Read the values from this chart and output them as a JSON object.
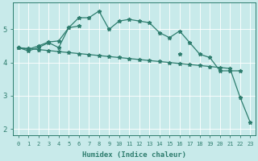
{
  "xlabel": "Humidex (Indice chaleur)",
  "bg_color": "#c8eaea",
  "grid_color": "#ffffff",
  "line_color": "#2e7d6e",
  "x_values": [
    0,
    1,
    2,
    3,
    4,
    5,
    6,
    7,
    8,
    9,
    10,
    11,
    12,
    13,
    14,
    15,
    16,
    17,
    18,
    19,
    20,
    21,
    22,
    23
  ],
  "series_wavy": [
    4.45,
    4.35,
    4.45,
    4.6,
    4.45,
    5.05,
    5.35,
    5.35,
    5.55,
    5.0,
    5.25,
    5.3,
    5.25,
    5.2,
    4.9,
    4.75,
    4.95,
    4.6,
    4.25,
    4.15,
    3.75,
    3.75,
    3.75,
    null
  ],
  "series_straight": [
    4.45,
    4.42,
    4.39,
    4.36,
    4.33,
    4.3,
    4.27,
    4.24,
    4.21,
    4.18,
    4.15,
    4.12,
    4.09,
    4.06,
    4.03,
    4.0,
    3.97,
    3.94,
    3.91,
    3.88,
    3.85,
    3.82,
    2.95,
    2.2
  ],
  "series_short": [
    4.45,
    4.4,
    4.5,
    4.62,
    4.65,
    5.05,
    5.1,
    null,
    null,
    null,
    null,
    null,
    null,
    null,
    null,
    null,
    4.25,
    null,
    null,
    null,
    null,
    null,
    null,
    null
  ],
  "ylim": [
    1.8,
    5.8
  ],
  "yticks": [
    2,
    3,
    4,
    5
  ],
  "xticks": [
    0,
    1,
    2,
    3,
    4,
    5,
    6,
    7,
    8,
    9,
    10,
    11,
    12,
    13,
    14,
    15,
    16,
    17,
    18,
    19,
    20,
    21,
    22,
    23
  ]
}
